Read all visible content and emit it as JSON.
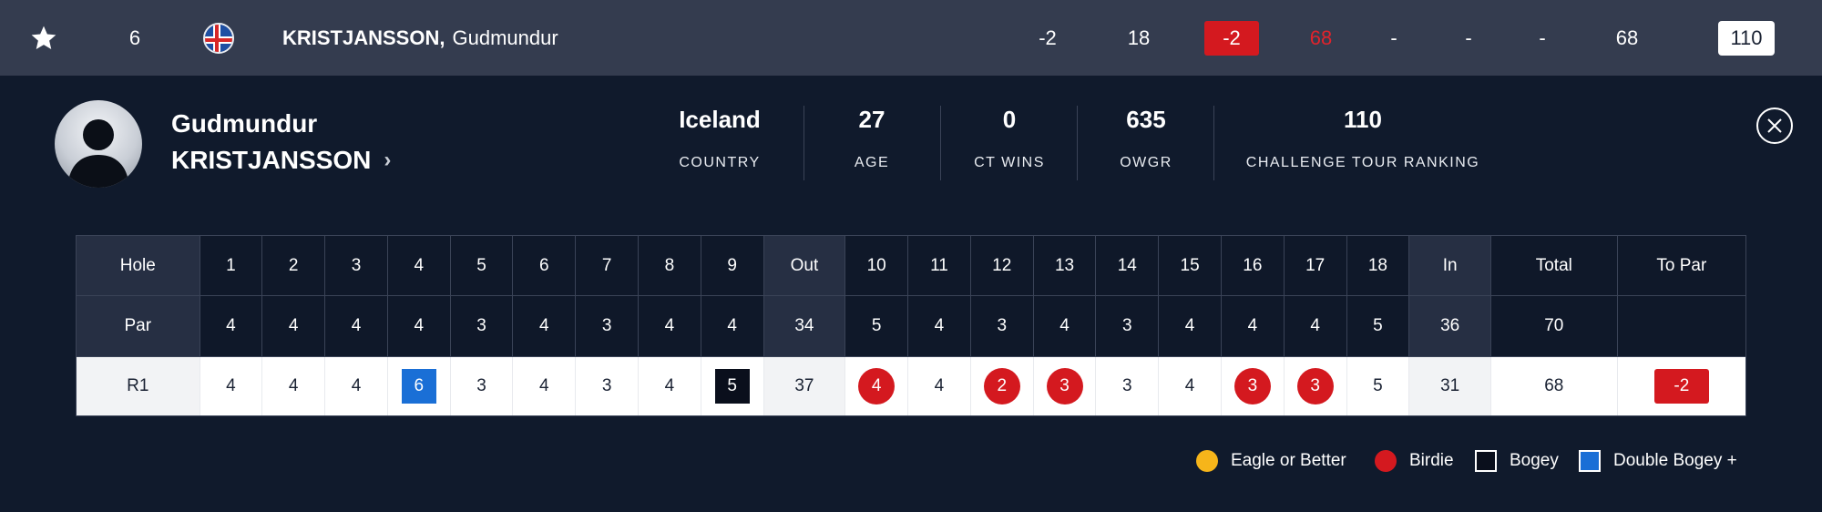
{
  "top": {
    "position": "6",
    "flag_country": "Iceland",
    "last_name": "KRISTJANSSON,",
    "first_name": "Gudmundur",
    "to_par": "-2",
    "thru": "18",
    "today": "-2",
    "r1": "68",
    "r2": "-",
    "r3": "-",
    "r4": "-",
    "total": "68",
    "rank": "110"
  },
  "player": {
    "first_name": "Gudmundur",
    "last_name": "KRISTJANSSON",
    "stats": [
      {
        "value": "Iceland",
        "label": "COUNTRY"
      },
      {
        "value": "27",
        "label": "AGE"
      },
      {
        "value": "0",
        "label": "CT WINS"
      },
      {
        "value": "635",
        "label": "OWGR"
      },
      {
        "value": "110",
        "label": "CHALLENGE TOUR RANKING"
      }
    ]
  },
  "scorecard": {
    "header": [
      "Hole",
      "1",
      "2",
      "3",
      "4",
      "5",
      "6",
      "7",
      "8",
      "9",
      "Out",
      "10",
      "11",
      "12",
      "13",
      "14",
      "15",
      "16",
      "17",
      "18",
      "In",
      "Total",
      "To Par"
    ],
    "par": [
      "Par",
      "4",
      "4",
      "4",
      "4",
      "3",
      "4",
      "3",
      "4",
      "4",
      "34",
      "5",
      "4",
      "3",
      "4",
      "3",
      "4",
      "4",
      "4",
      "5",
      "36",
      "70",
      ""
    ],
    "round": [
      "R1",
      "4",
      "4",
      "4",
      "6",
      "3",
      "4",
      "3",
      "4",
      "5",
      "37",
      "4",
      "4",
      "2",
      "3",
      "3",
      "4",
      "3",
      "3",
      "5",
      "31",
      "68",
      "-2"
    ],
    "round_marks": [
      "",
      "",
      "",
      "",
      "dbogey",
      "",
      "",
      "",
      "",
      "bogey",
      "",
      "birdie",
      "",
      "birdie",
      "birdie",
      "",
      "",
      "birdie",
      "birdie",
      "",
      "",
      "",
      "topar"
    ]
  },
  "legend": [
    {
      "type": "eagle",
      "label": "Eagle or Better"
    },
    {
      "type": "birdie",
      "label": "Birdie"
    },
    {
      "type": "bogey",
      "label": "Bogey"
    },
    {
      "type": "dbogey",
      "label": "Double Bogey +"
    }
  ],
  "colors": {
    "topbar": "#343c4f",
    "background": "#101a2c",
    "birdie": "#d4191f",
    "eagle": "#f6b51a",
    "bogey": "#0a0f1c",
    "double_bogey": "#1a6fd6"
  }
}
